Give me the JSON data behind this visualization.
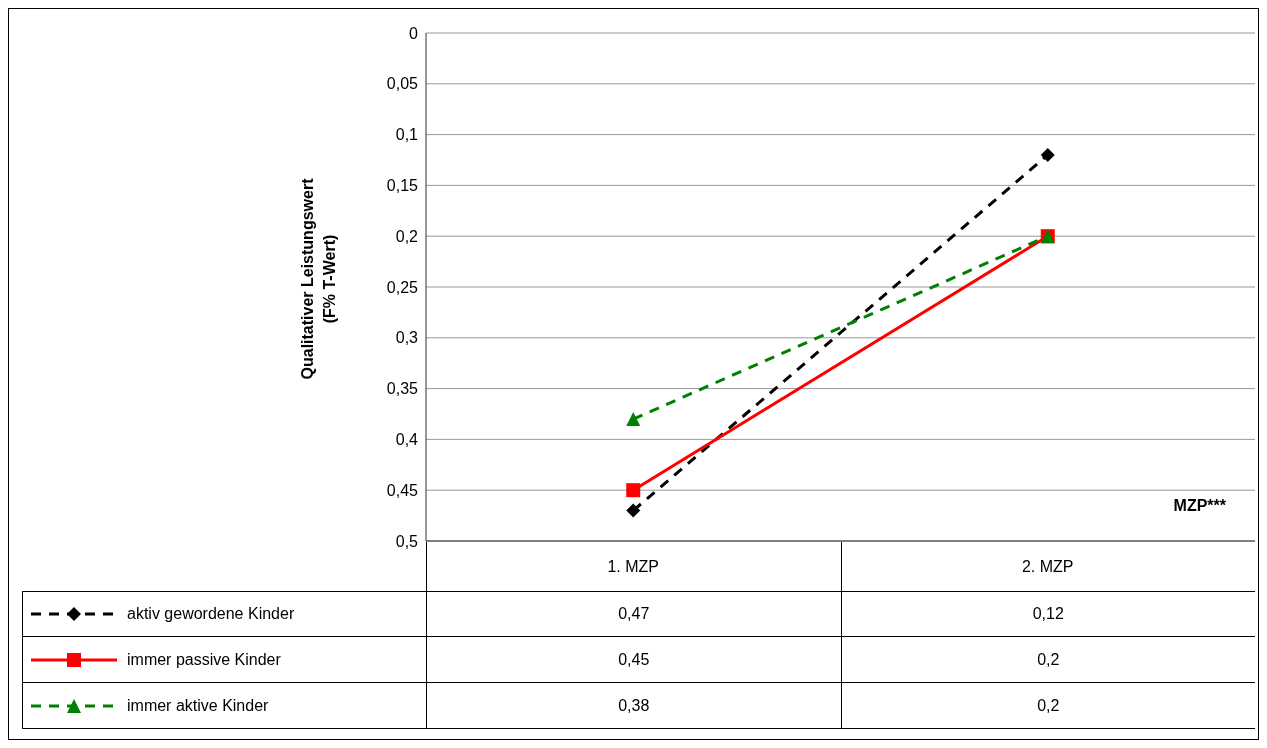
{
  "chart_data": {
    "type": "line",
    "ylabel": "Qualitativer Leistungswert\n(F% T-Wert)",
    "categories": [
      "1. MZP",
      "2. MZP"
    ],
    "series": [
      {
        "name": "aktiv gewordene Kinder",
        "color": "#000000",
        "values": [
          0.47,
          0.12
        ],
        "value_labels": [
          "0,47",
          "0,12"
        ],
        "marker": "diamond",
        "line_style": "dashed"
      },
      {
        "name": "immer passive Kinder",
        "color": "#ff0000",
        "values": [
          0.45,
          0.2
        ],
        "value_labels": [
          "0,45",
          "0,2"
        ],
        "marker": "square",
        "line_style": "solid"
      },
      {
        "name": "immer aktive Kinder",
        "color": "#008000",
        "values": [
          0.38,
          0.2
        ],
        "value_labels": [
          "0,38",
          "0,2"
        ],
        "marker": "triangle",
        "line_style": "dashed"
      }
    ],
    "ylim": [
      0.5,
      0
    ],
    "yticks": [
      0,
      {
        "value": 0.05,
        "label": "0,05"
      },
      {
        "value": 0.1,
        "label": "0,1"
      },
      {
        "value": 0.15,
        "label": "0,15"
      },
      {
        "value": 0.2,
        "label": "0,2"
      },
      {
        "value": 0.25,
        "label": "0,25"
      },
      {
        "value": 0.3,
        "label": "0,3"
      },
      {
        "value": 0.35,
        "label": "0,35"
      },
      {
        "value": 0.4,
        "label": "0,4"
      },
      {
        "value": 0.45,
        "label": "0,45"
      },
      {
        "value": 0.5,
        "label": "0,5"
      }
    ],
    "grid": "y",
    "legend": "bottom",
    "annotations": [
      "MZP***"
    ]
  }
}
